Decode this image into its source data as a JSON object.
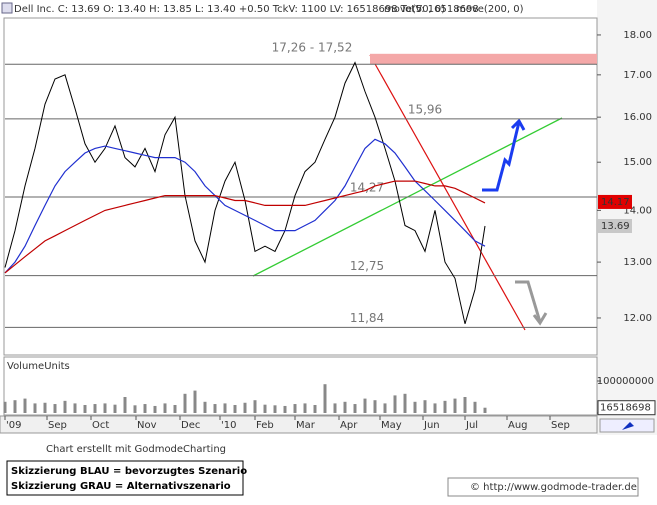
{
  "chart_data": {
    "type": "line",
    "header": "Dell Inc.  C: 13.69  O: 13.40  H: 13.85  L: 13.40  +0.50  TckV: 1100  LV: 16518698  TotV: 16518698",
    "log_scale": true,
    "xlim": [
      0,
      59.2
    ],
    "xticks": [
      {
        "value": 0,
        "label": "'09"
      },
      {
        "value": 4.2,
        "label": "Sep"
      },
      {
        "value": 8.6,
        "label": "Oct"
      },
      {
        "value": 13.1,
        "label": "Nov"
      },
      {
        "value": 17.5,
        "label": "Dec"
      },
      {
        "value": 21.5,
        "label": "'10"
      },
      {
        "value": 25,
        "label": "Feb"
      },
      {
        "value": 29,
        "label": "Mar"
      },
      {
        "value": 33.4,
        "label": "Apr"
      },
      {
        "value": 37.5,
        "label": "May"
      },
      {
        "value": 41.8,
        "label": "Jun"
      },
      {
        "value": 46,
        "label": "Jul"
      },
      {
        "value": 50.2,
        "label": "Aug"
      },
      {
        "value": 54.5,
        "label": "Sep"
      }
    ],
    "ylim": [
      11.38,
      18.18
    ],
    "yticks": [
      {
        "value": 18,
        "label": "18.00"
      },
      {
        "value": 17,
        "label": "17.00"
      },
      {
        "value": 16,
        "label": "16.00"
      },
      {
        "value": 15,
        "label": "15.00"
      },
      {
        "value": 14,
        "label": "14.00"
      },
      {
        "value": 13,
        "label": "13.00"
      },
      {
        "value": 12,
        "label": "12.00"
      }
    ],
    "series": [
      {
        "color": "#000000",
        "values": [
          12.9,
          13.6,
          14.5,
          15.3,
          16.3,
          16.9,
          17.0,
          16.2,
          15.4,
          15.0,
          15.3,
          15.8,
          15.1,
          14.9,
          15.3,
          14.8,
          15.6,
          16.0,
          14.3,
          13.4,
          13.0,
          14.0,
          14.6,
          15.0,
          14.2,
          13.2,
          13.3,
          13.2,
          13.6,
          14.3,
          14.8,
          15.0,
          15.5,
          16.0,
          16.8,
          17.3,
          16.6,
          16.0,
          15.3,
          14.6,
          13.7,
          13.6,
          13.2,
          14.0,
          13.0,
          12.7,
          11.9,
          12.5,
          13.69
        ]
      },
      {
        "name": "move(50, 0)",
        "color": "#2030d0",
        "values": [
          12.8,
          13.0,
          13.3,
          13.7,
          14.1,
          14.5,
          14.8,
          15.0,
          15.2,
          15.3,
          15.35,
          15.3,
          15.25,
          15.2,
          15.15,
          15.1,
          15.1,
          15.1,
          15.0,
          14.8,
          14.5,
          14.3,
          14.1,
          14.0,
          13.9,
          13.8,
          13.7,
          13.6,
          13.6,
          13.6,
          13.7,
          13.8,
          14.0,
          14.2,
          14.5,
          14.9,
          15.3,
          15.5,
          15.4,
          15.2,
          14.9,
          14.6,
          14.4,
          14.2,
          14.0,
          13.8,
          13.6,
          13.4,
          13.3
        ]
      },
      {
        "name": "move(200, 0)",
        "color": "#c00000",
        "values": [
          12.8,
          12.95,
          13.1,
          13.25,
          13.4,
          13.5,
          13.6,
          13.7,
          13.8,
          13.9,
          14.0,
          14.05,
          14.1,
          14.15,
          14.2,
          14.25,
          14.3,
          14.3,
          14.3,
          14.3,
          14.3,
          14.3,
          14.25,
          14.2,
          14.2,
          14.15,
          14.1,
          14.1,
          14.1,
          14.1,
          14.1,
          14.15,
          14.2,
          14.25,
          14.3,
          14.35,
          14.4,
          14.5,
          14.55,
          14.6,
          14.6,
          14.6,
          14.55,
          14.5,
          14.5,
          14.45,
          14.35,
          14.25,
          14.15
        ]
      }
    ],
    "zone": {
      "low": 17.26,
      "high": 17.52,
      "label": "17,26 - 17,52",
      "color": "#f4a8a8"
    },
    "levels": [
      {
        "value": 15.96,
        "label": "15,96"
      },
      {
        "value": 14.27,
        "label": "14,27"
      },
      {
        "value": 12.75,
        "label": "12,75"
      },
      {
        "value": 11.84,
        "label": "11,84"
      }
    ],
    "price_tags": [
      {
        "value": 14.17,
        "color": "#e00000"
      },
      {
        "value": 13.69,
        "color": "#c8c8c8"
      }
    ],
    "volume": {
      "label": "VolumeUnits",
      "color": "#888888",
      "values": [
        35000000,
        40000000,
        45000000,
        30000000,
        32000000,
        28000000,
        38000000,
        30000000,
        25000000,
        28000000,
        30000000,
        26000000,
        50000000,
        24000000,
        28000000,
        22000000,
        30000000,
        25000000,
        60000000,
        70000000,
        35000000,
        28000000,
        30000000,
        25000000,
        32000000,
        40000000,
        26000000,
        24000000,
        22000000,
        28000000,
        30000000,
        25000000,
        90000000,
        30000000,
        35000000,
        28000000,
        45000000,
        40000000,
        30000000,
        55000000,
        60000000,
        35000000,
        40000000,
        30000000,
        38000000,
        45000000,
        50000000,
        35000000,
        16518698
      ],
      "ylim": [
        0,
        175000000
      ],
      "yticks": [
        100000000,
        0
      ],
      "tag": 16518698
    },
    "credit": "Chart erstellt mit GodmodeCharting",
    "notes": [
      "Skizzierung BLAU = bevorzugtes Szenario",
      "Skizzierung GRAU = Alternativszenario"
    ],
    "source": "© http://www.godmode-trader.de"
  }
}
